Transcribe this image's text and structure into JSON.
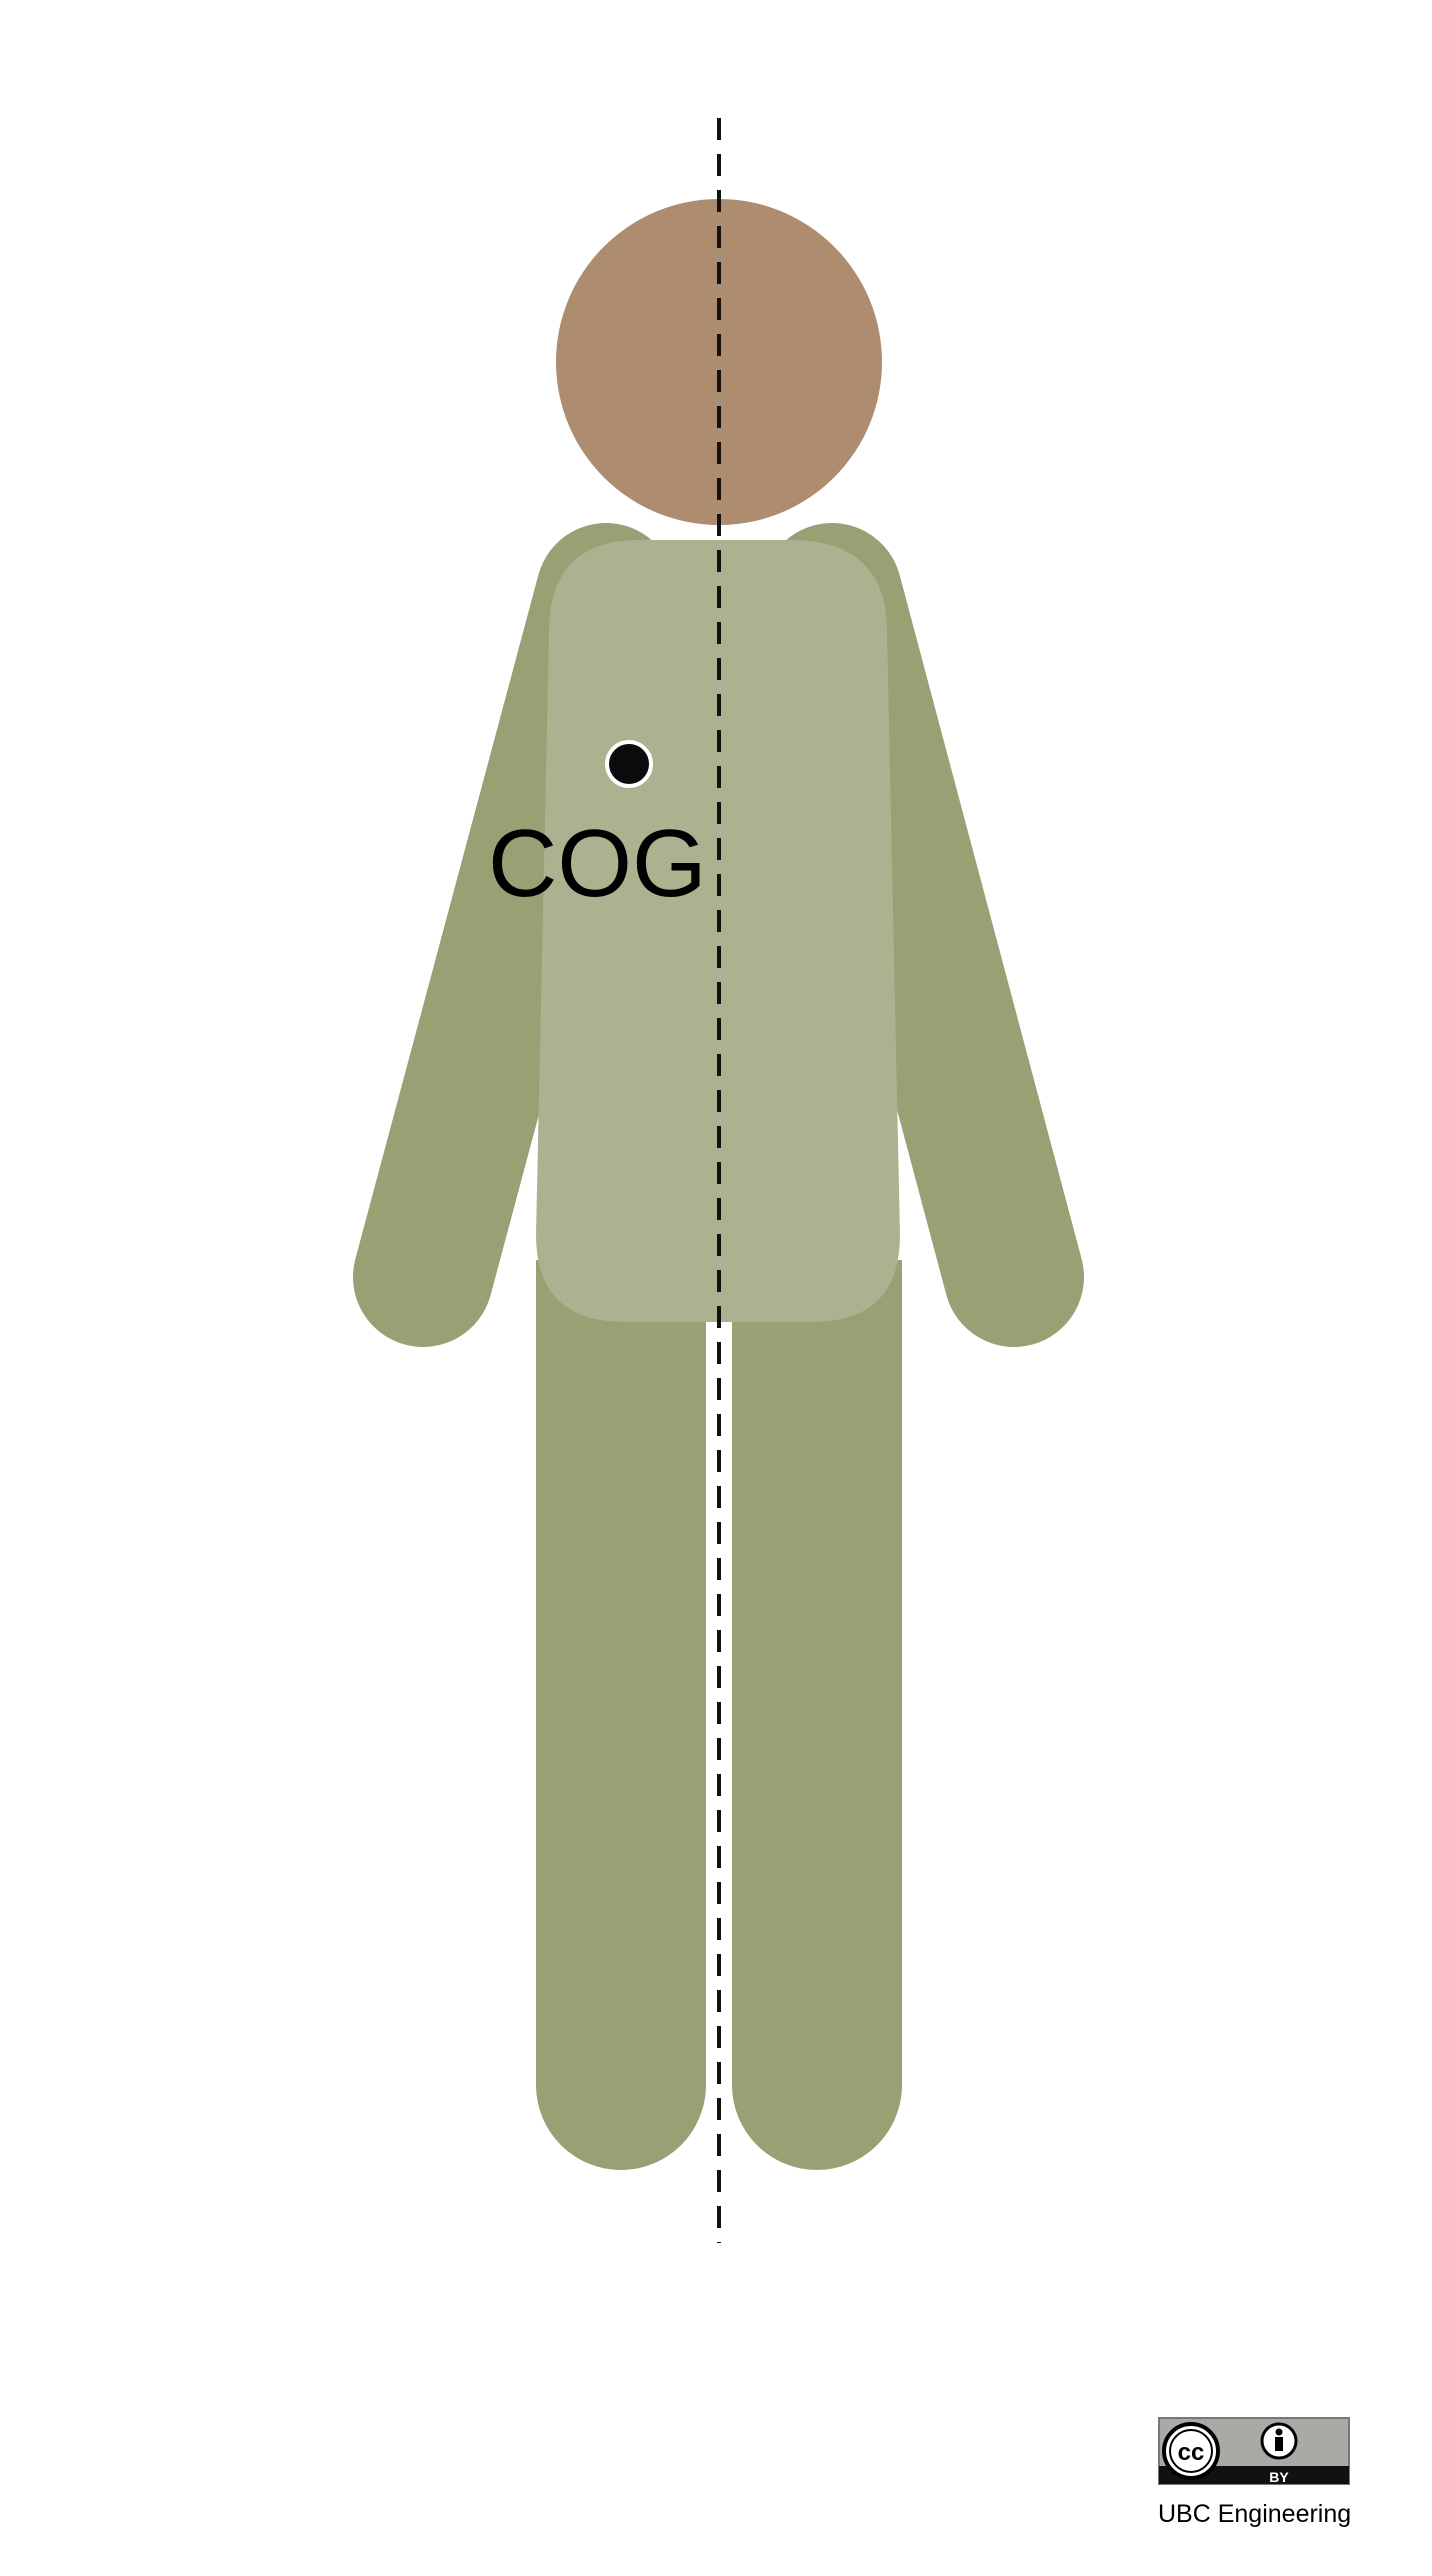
{
  "diagram": {
    "cog_label": "COG",
    "credit_text": "UBC Engineering",
    "license_badge": {
      "cc_text": "cc",
      "by_text": "BY",
      "icons": [
        "creative-commons-icon",
        "attribution-person-icon"
      ]
    },
    "colors": {
      "head": "#ad8c6f",
      "limbs": "#9a9f74",
      "torso": "#aeb190",
      "cog_point": "#0b0b0d",
      "centerline": "#111111",
      "badge_bg": "#a8aba5",
      "badge_bottom": "#111111"
    }
  }
}
